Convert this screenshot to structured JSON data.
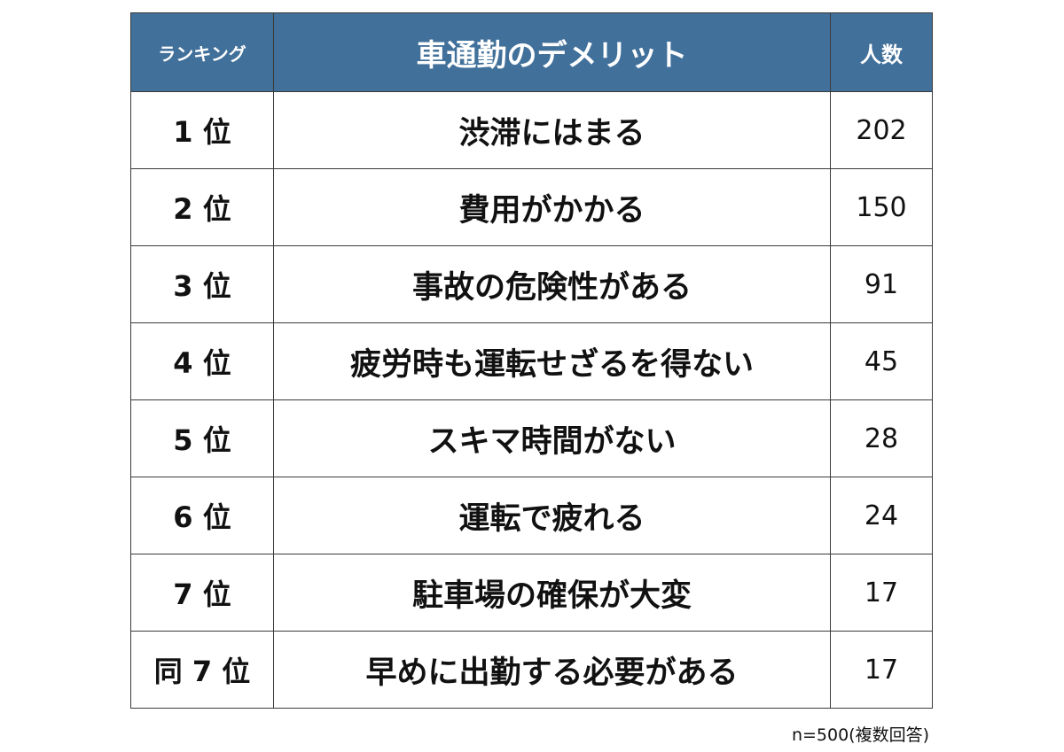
{
  "chart_data": {
    "type": "table",
    "columns": [
      "ランキング",
      "車通勤のデメリット",
      "人数"
    ],
    "rows": [
      {
        "rank": "1 位",
        "item": "渋滞にはまる",
        "count": 202
      },
      {
        "rank": "2 位",
        "item": "費用がかかる",
        "count": 150
      },
      {
        "rank": "3 位",
        "item": "事故の危険性がある",
        "count": 91
      },
      {
        "rank": "4 位",
        "item": "疲労時も運転せざるを得ない",
        "count": 45
      },
      {
        "rank": "5 位",
        "item": "スキマ時間がない",
        "count": 28
      },
      {
        "rank": "6 位",
        "item": "運転で疲れる",
        "count": 24
      },
      {
        "rank": "7 位",
        "item": "駐車場の確保が大変",
        "count": 17
      },
      {
        "rank": "同 7 位",
        "item": "早めに出勤する必要がある",
        "count": 17
      }
    ],
    "note": "n=500(複数回答)"
  },
  "colors": {
    "header_bg": "#41709a",
    "header_text": "#ffffff",
    "border": "#3a3a3a"
  }
}
